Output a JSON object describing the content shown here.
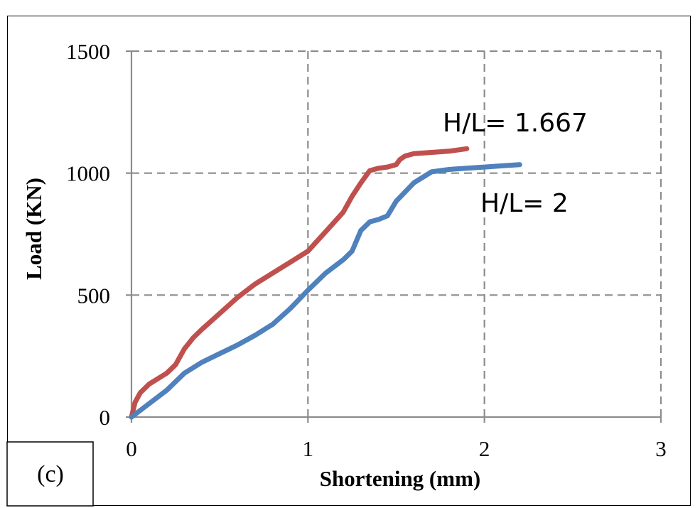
{
  "chart_data": {
    "type": "line",
    "title": "",
    "xlabel": "Shortening (mm)",
    "ylabel": "Load (KN)",
    "xlim": [
      0,
      3
    ],
    "ylim": [
      0,
      1500
    ],
    "x_ticks": [
      "0",
      "1",
      "2",
      "3"
    ],
    "y_ticks": [
      "0",
      "500",
      "1000",
      "1500"
    ],
    "grid": true,
    "panel_label": "(c)",
    "series": [
      {
        "name": "H/L= 1.667",
        "color": "#c0504d",
        "x": [
          0,
          0.02,
          0.05,
          0.1,
          0.2,
          0.25,
          0.3,
          0.35,
          0.4,
          0.5,
          0.6,
          0.7,
          0.8,
          0.9,
          1.0,
          1.1,
          1.2,
          1.25,
          1.3,
          1.35,
          1.4,
          1.45,
          1.5,
          1.52,
          1.55,
          1.6,
          1.7,
          1.8,
          1.9
        ],
        "y": [
          0,
          60,
          100,
          135,
          180,
          215,
          280,
          325,
          360,
          425,
          490,
          545,
          590,
          635,
          680,
          760,
          840,
          905,
          960,
          1010,
          1020,
          1025,
          1035,
          1055,
          1070,
          1080,
          1085,
          1090,
          1100
        ]
      },
      {
        "name": "H/L= 2",
        "color": "#4f81bd",
        "x": [
          0,
          0.1,
          0.2,
          0.3,
          0.4,
          0.5,
          0.6,
          0.7,
          0.8,
          0.9,
          1.0,
          1.1,
          1.2,
          1.25,
          1.3,
          1.35,
          1.4,
          1.45,
          1.5,
          1.6,
          1.7,
          1.8,
          1.9,
          2.0,
          2.1,
          2.2
        ],
        "y": [
          0,
          55,
          110,
          180,
          225,
          260,
          295,
          335,
          380,
          445,
          520,
          590,
          645,
          680,
          765,
          800,
          810,
          825,
          885,
          960,
          1005,
          1015,
          1020,
          1025,
          1030,
          1035
        ]
      }
    ]
  }
}
